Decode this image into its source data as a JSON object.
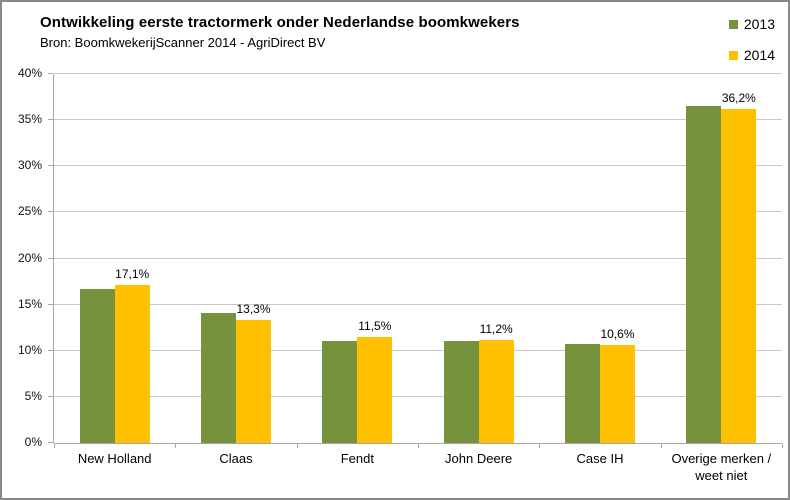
{
  "chart_data": {
    "type": "bar",
    "title": "Ontwikkeling eerste tractormerk onder Nederlandse boomkwekers",
    "subtitle": "Bron: BoomkwekerijScanner 2014 - AgriDirect BV",
    "categories": [
      "New Holland",
      "Claas",
      "Fendt",
      "John Deere",
      "Case IH",
      "Overige merken / weet niet"
    ],
    "series": [
      {
        "name": "2013",
        "color": "#76923C",
        "values": [
          16.7,
          14.1,
          11.1,
          11.1,
          10.7,
          36.5
        ],
        "labels": null
      },
      {
        "name": "2014",
        "color": "#FFC000",
        "values": [
          17.1,
          13.3,
          11.5,
          11.2,
          10.6,
          36.2
        ],
        "labels": [
          "17,1%",
          "13,3%",
          "11,5%",
          "11,2%",
          "10,6%",
          "36,2%"
        ]
      }
    ],
    "ylim": [
      0,
      40
    ],
    "ytick_values": [
      0,
      5,
      10,
      15,
      20,
      25,
      30,
      35,
      40
    ],
    "ytick_labels": [
      "0%",
      "5%",
      "10%",
      "15%",
      "20%",
      "25%",
      "30%",
      "35%",
      "40%"
    ],
    "grid": "horizontal",
    "legend_position": "top-right",
    "xlabel": "",
    "ylabel": ""
  }
}
